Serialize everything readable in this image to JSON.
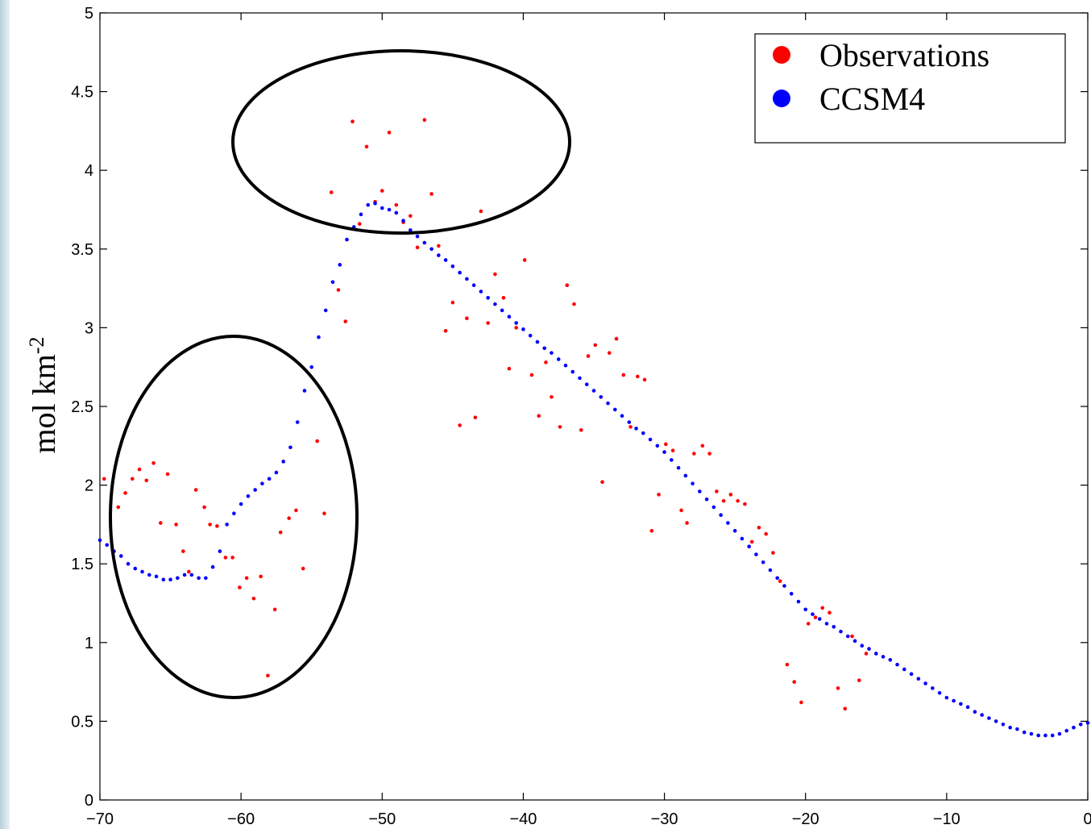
{
  "chart_data": {
    "type": "scatter",
    "ylabel": {
      "text": "mol km",
      "sup": "-2"
    },
    "xlim": [
      -70,
      0
    ],
    "ylim": [
      0,
      5
    ],
    "xticks": [
      {
        "value": -70,
        "label": "−70"
      },
      {
        "value": -60,
        "label": "−60"
      },
      {
        "value": -50,
        "label": "−50"
      },
      {
        "value": -40,
        "label": "−40"
      },
      {
        "value": -30,
        "label": "−30"
      },
      {
        "value": -20,
        "label": "−20"
      },
      {
        "value": -10,
        "label": "−10"
      },
      0
    ],
    "yticks": [
      0,
      0.5,
      1,
      1.5,
      2,
      2.5,
      3,
      3.5,
      4,
      4.5,
      5
    ],
    "grid": false,
    "legend": "upper right",
    "series": [
      {
        "name": "Observations",
        "color": "#ff0000",
        "x": [
          -69.7,
          -68.7,
          -68.2,
          -67.7,
          -67.2,
          -66.7,
          -66.2,
          -65.7,
          -65.2,
          -64.6,
          -64.1,
          -63.7,
          -63.2,
          -62.6,
          -62.2,
          -61.7,
          -61.1,
          -60.6,
          -60.1,
          -59.6,
          -59.1,
          -58.6,
          -58.1,
          -57.6,
          -57.2,
          -56.6,
          -56.1,
          -55.6,
          -54.6,
          -54.1,
          -53.6,
          -53.1,
          -52.6,
          -52.1,
          -51.6,
          -51.1,
          -50.5,
          -50.0,
          -49.5,
          -49.0,
          -48.5,
          -48.0,
          -47.5,
          -47.0,
          -46.5,
          -46.0,
          -45.5,
          -45.0,
          -44.5,
          -44.0,
          -43.4,
          -43.0,
          -42.5,
          -42.0,
          -41.4,
          -41.0,
          -40.5,
          -39.9,
          -39.4,
          -38.9,
          -38.4,
          -38.0,
          -37.4,
          -36.9,
          -36.4,
          -35.9,
          -35.4,
          -34.9,
          -34.4,
          -33.9,
          -33.4,
          -32.9,
          -32.4,
          -31.9,
          -31.4,
          -30.9,
          -30.4,
          -29.9,
          -29.4,
          -28.8,
          -28.4,
          -27.9,
          -27.3,
          -26.8,
          -26.3,
          -25.8,
          -25.3,
          -24.8,
          -24.3,
          -23.8,
          -23.3,
          -22.8,
          -22.3,
          -21.8,
          -21.3,
          -20.8,
          -20.3,
          -19.8,
          -19.3,
          -18.8,
          -18.3,
          -17.7,
          -17.2,
          -16.7,
          -16.2,
          -15.7
        ],
        "values": [
          2.04,
          1.86,
          1.95,
          2.04,
          2.1,
          2.03,
          2.14,
          1.76,
          2.07,
          1.75,
          1.58,
          1.45,
          1.97,
          1.86,
          1.75,
          1.74,
          1.54,
          1.54,
          1.35,
          1.41,
          1.28,
          1.42,
          0.79,
          1.21,
          1.7,
          1.79,
          1.84,
          1.47,
          2.28,
          1.82,
          3.86,
          3.24,
          3.04,
          4.31,
          3.66,
          4.15,
          3.8,
          3.87,
          4.24,
          3.78,
          3.67,
          3.71,
          3.51,
          4.32,
          3.85,
          3.52,
          2.98,
          3.16,
          2.38,
          3.06,
          2.43,
          3.74,
          3.03,
          3.34,
          3.19,
          2.74,
          3.0,
          3.43,
          2.7,
          2.44,
          2.78,
          2.56,
          2.37,
          3.27,
          3.15,
          2.35,
          2.82,
          2.89,
          2.02,
          2.84,
          2.93,
          2.7,
          2.37,
          2.69,
          2.67,
          1.71,
          1.94,
          2.26,
          2.22,
          1.84,
          1.76,
          2.2,
          2.25,
          2.2,
          1.96,
          1.9,
          1.94,
          1.9,
          1.88,
          1.64,
          1.73,
          1.69,
          1.57,
          1.39,
          0.86,
          0.75,
          0.62,
          1.12,
          1.16,
          1.22,
          1.19,
          0.71,
          0.58,
          1.04,
          0.76,
          0.93
        ]
      },
      {
        "name": "CCSM4",
        "color": "#0000ff",
        "x": [
          -70,
          -69.5,
          -69,
          -68.5,
          -68,
          -67.5,
          -67,
          -66.5,
          -66,
          -65.5,
          -65,
          -64.5,
          -64,
          -63.5,
          -63,
          -62.5,
          -62,
          -61.5,
          -61,
          -60.5,
          -60,
          -59.5,
          -59,
          -58.5,
          -58,
          -57.5,
          -57,
          -56.5,
          -56,
          -55.5,
          -55,
          -54.5,
          -54,
          -53.5,
          -53,
          -52.5,
          -52,
          -51.5,
          -51,
          -50.5,
          -50,
          -49.5,
          -49,
          -48.5,
          -48,
          -47.5,
          -47,
          -46.5,
          -46,
          -45.5,
          -45,
          -44.5,
          -44,
          -43.5,
          -43,
          -42.5,
          -42,
          -41.5,
          -41,
          -40.5,
          -40,
          -39.5,
          -39,
          -38.5,
          -38,
          -37.5,
          -37,
          -36.5,
          -36,
          -35.5,
          -35,
          -34.5,
          -34,
          -33.5,
          -33,
          -32.5,
          -32,
          -31.5,
          -31,
          -30.5,
          -30,
          -29.5,
          -29,
          -28.5,
          -28,
          -27.5,
          -27,
          -26.5,
          -26,
          -25.5,
          -25,
          -24.5,
          -24,
          -23.5,
          -23,
          -22.5,
          -22,
          -21.5,
          -21,
          -20.5,
          -20,
          -19.5,
          -19,
          -18.5,
          -18,
          -17.5,
          -17,
          -16.5,
          -16,
          -15.5,
          -15,
          -14.5,
          -14,
          -13.5,
          -13,
          -12.5,
          -12,
          -11.5,
          -11,
          -10.5,
          -10,
          -9.5,
          -9,
          -8.5,
          -8,
          -7.5,
          -7,
          -6.5,
          -6,
          -5.5,
          -5,
          -4.5,
          -4,
          -3.5,
          -3,
          -2.5,
          -2,
          -1.5,
          -1,
          -0.5,
          0
        ],
        "values": [
          1.65,
          1.62,
          1.58,
          1.55,
          1.5,
          1.47,
          1.45,
          1.43,
          1.42,
          1.4,
          1.4,
          1.41,
          1.43,
          1.43,
          1.41,
          1.41,
          1.48,
          1.58,
          1.75,
          1.82,
          1.88,
          1.93,
          1.97,
          2.01,
          2.04,
          2.08,
          2.15,
          2.24,
          2.4,
          2.6,
          2.75,
          2.94,
          3.11,
          3.29,
          3.4,
          3.56,
          3.64,
          3.72,
          3.78,
          3.79,
          3.76,
          3.75,
          3.73,
          3.68,
          3.62,
          3.58,
          3.54,
          3.5,
          3.46,
          3.43,
          3.39,
          3.35,
          3.31,
          3.27,
          3.23,
          3.19,
          3.15,
          3.11,
          3.07,
          3.03,
          2.99,
          2.95,
          2.91,
          2.87,
          2.84,
          2.8,
          2.76,
          2.72,
          2.68,
          2.64,
          2.6,
          2.56,
          2.52,
          2.48,
          2.44,
          2.4,
          2.36,
          2.33,
          2.29,
          2.25,
          2.21,
          2.16,
          2.11,
          2.06,
          2.01,
          1.96,
          1.91,
          1.86,
          1.81,
          1.76,
          1.71,
          1.66,
          1.61,
          1.56,
          1.51,
          1.46,
          1.41,
          1.36,
          1.31,
          1.26,
          1.21,
          1.18,
          1.15,
          1.12,
          1.1,
          1.07,
          1.04,
          1.01,
          0.98,
          0.96,
          0.93,
          0.91,
          0.89,
          0.86,
          0.83,
          0.8,
          0.77,
          0.74,
          0.71,
          0.68,
          0.65,
          0.63,
          0.61,
          0.59,
          0.56,
          0.54,
          0.52,
          0.5,
          0.48,
          0.46,
          0.45,
          0.43,
          0.42,
          0.41,
          0.41,
          0.41,
          0.42,
          0.44,
          0.46,
          0.48,
          0.49
        ]
      }
    ]
  }
}
